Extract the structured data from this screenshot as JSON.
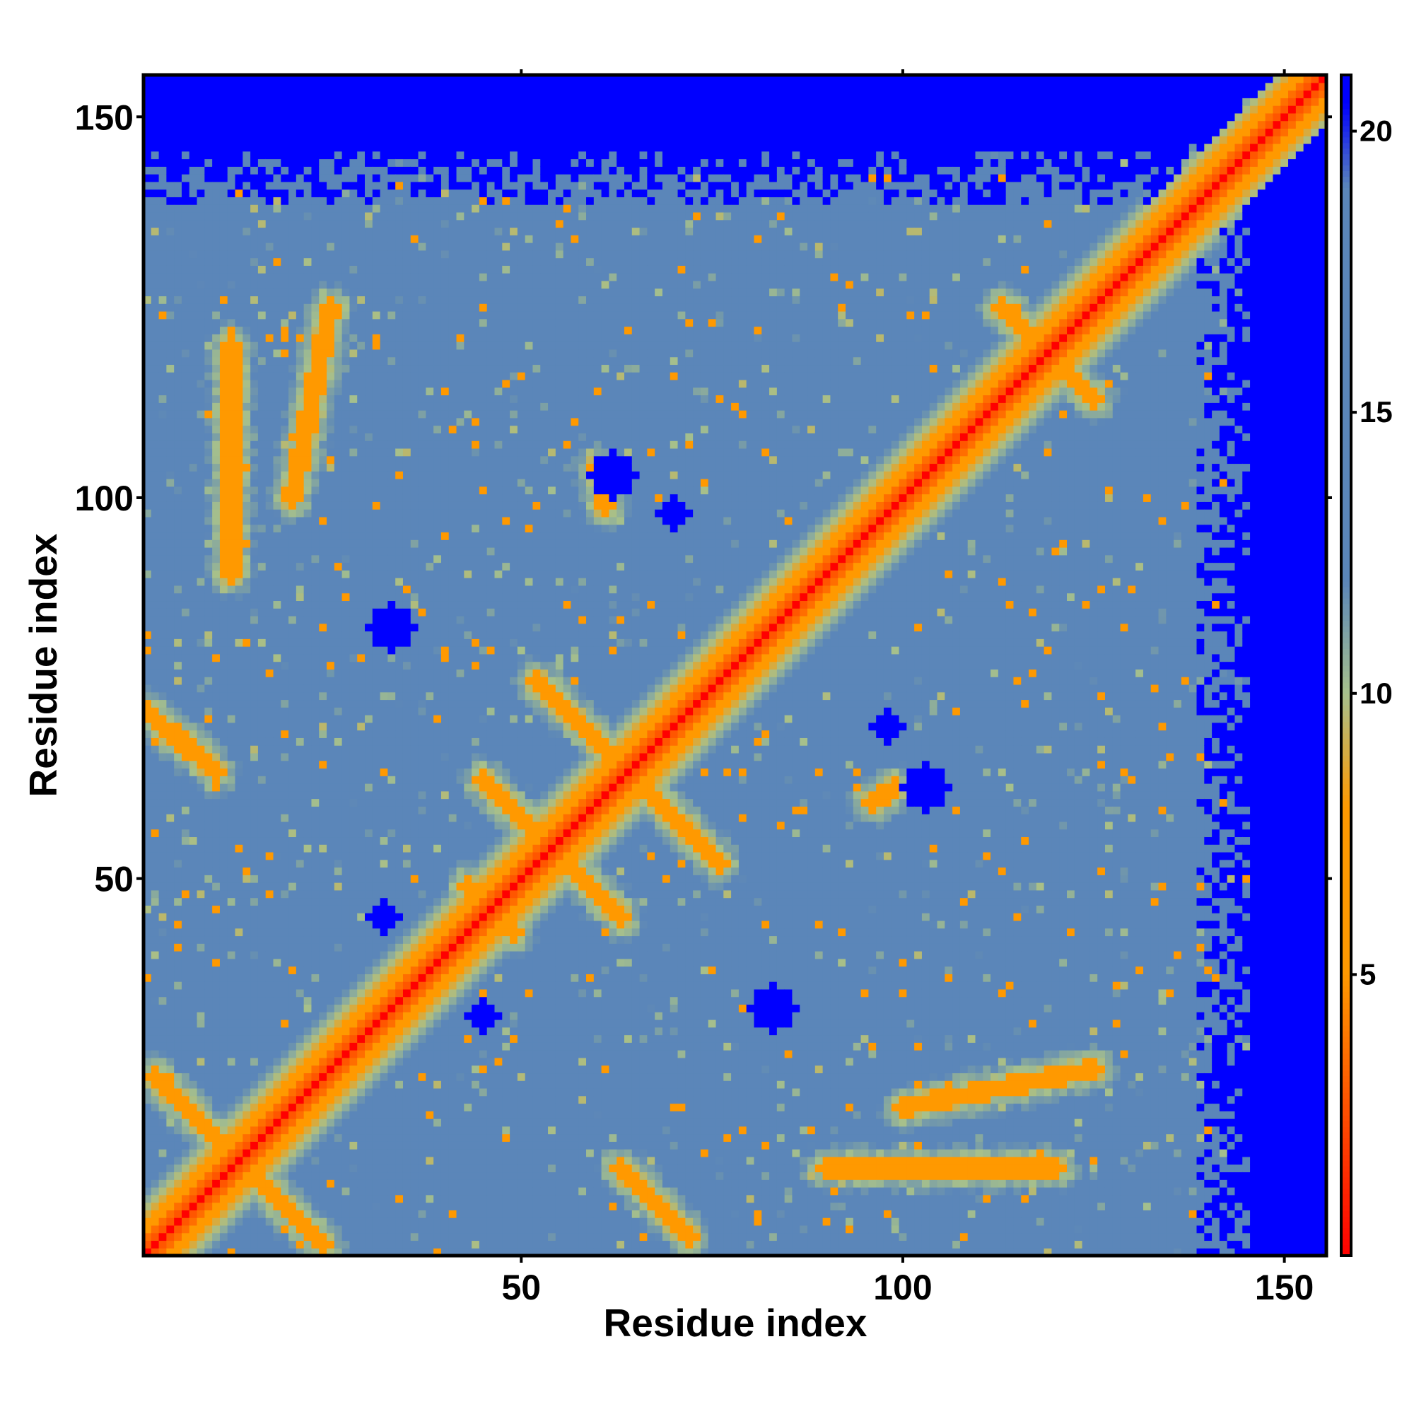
{
  "chart_data": {
    "type": "heatmap",
    "title": "",
    "xlabel": "Residue index",
    "ylabel": "Residue index",
    "n_residues": 155,
    "xlim": [
      1,
      155
    ],
    "ylim": [
      1,
      155
    ],
    "x_ticks": [
      50,
      100,
      150
    ],
    "y_ticks": [
      50,
      100,
      150
    ],
    "x_tick_labels": [
      "50",
      "100",
      "150"
    ],
    "y_tick_labels": [
      "50",
      "100",
      "150"
    ],
    "value_unit": "distance",
    "colorbar": {
      "range": [
        0,
        21
      ],
      "ticks": [
        5,
        10,
        15,
        20
      ],
      "tick_labels": [
        "5",
        "10",
        "15",
        "20"
      ],
      "stops": [
        {
          "value": 0,
          "color": "#ff0000"
        },
        {
          "value": 5,
          "color": "#ff9900"
        },
        {
          "value": 8,
          "color": "#ff9900"
        },
        {
          "value": 10,
          "color": "#a6c08c"
        },
        {
          "value": 12,
          "color": "#5b86b9"
        },
        {
          "value": 19,
          "color": "#5b86b9"
        },
        {
          "value": 20.5,
          "color": "#0000ff"
        },
        {
          "value": 21,
          "color": "#0000ff"
        }
      ]
    },
    "structure_features": {
      "diagonal_value": 0,
      "background_value": 17,
      "unstructured_terminus_start": 138,
      "far_value": 22,
      "antidiagonal_contacts": [
        {
          "center": [
            13,
            13
          ],
          "half_length": 11
        },
        {
          "center": [
            64,
            64
          ],
          "half_length": 12
        },
        {
          "center": [
            54,
            54
          ],
          "half_length": 9
        },
        {
          "center": [
            119,
            119
          ],
          "half_length": 6
        },
        {
          "center": [
            46,
            46
          ],
          "half_length": 3
        }
      ],
      "offdiagonal_contacts": [
        {
          "from": [
            1,
            72
          ],
          "to": [
            10,
            64
          ]
        },
        {
          "from": [
            63,
            12
          ],
          "to": [
            72,
            3
          ]
        },
        {
          "from": [
            99,
            62
          ],
          "to": [
            96,
            60
          ]
        },
        {
          "from": [
            60,
            104
          ],
          "to": [
            61,
            99
          ]
        }
      ],
      "parallel_contacts": [
        {
          "from": [
            100,
            20
          ],
          "to": [
            125,
            25
          ]
        },
        {
          "from": [
            20,
            100
          ],
          "to": [
            25,
            125
          ]
        },
        {
          "from": [
            12,
            90
          ],
          "to": [
            12,
            120
          ]
        },
        {
          "from": [
            90,
            12
          ],
          "to": [
            120,
            12
          ]
        }
      ],
      "voids": [
        {
          "center": [
            62,
            103
          ],
          "r": 3
        },
        {
          "center": [
            103,
            62
          ],
          "r": 3
        },
        {
          "center": [
            83,
            33
          ],
          "r": 3
        },
        {
          "center": [
            33,
            83
          ],
          "r": 3
        },
        {
          "center": [
            98,
            70
          ],
          "r": 2
        },
        {
          "center": [
            70,
            98
          ],
          "r": 2
        },
        {
          "center": [
            45,
            32
          ],
          "r": 2
        },
        {
          "center": [
            32,
            45
          ],
          "r": 2
        }
      ]
    }
  }
}
